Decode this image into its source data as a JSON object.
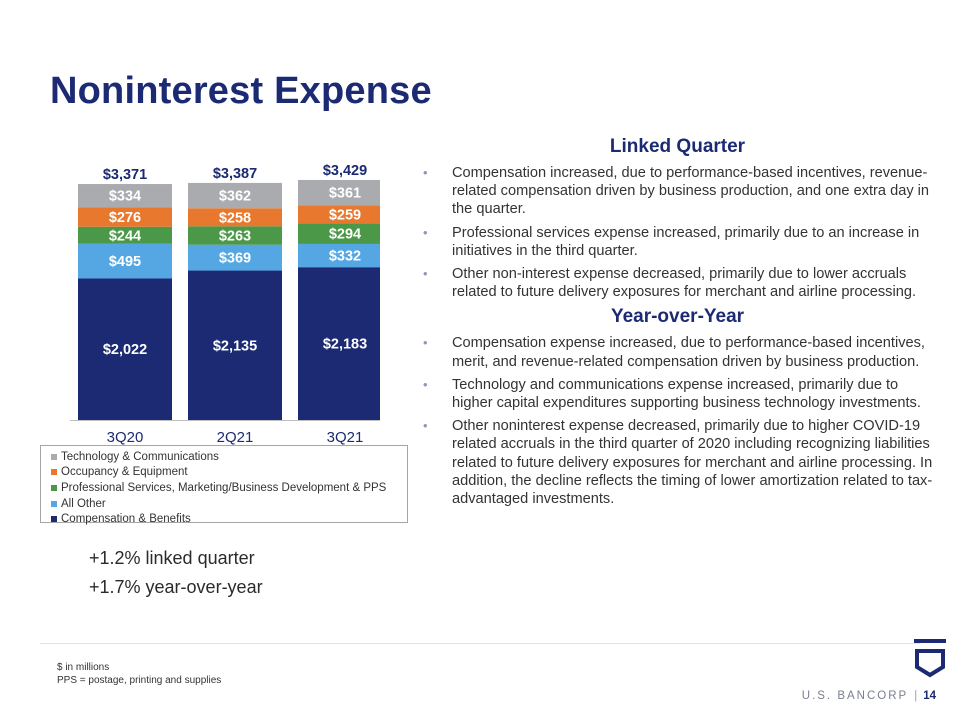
{
  "page": {
    "title": "Noninterest Expense",
    "summary": [
      "+1.2% linked quarter",
      "+1.7% year-over-year"
    ],
    "footnotes": [
      "$ in millions",
      "PPS = postage, printing and supplies"
    ],
    "brand": "U.S. BANCORP",
    "separator": "|",
    "page_number": "14"
  },
  "sections": [
    {
      "title": "Linked Quarter",
      "bullets": [
        "Compensation increased, due to performance-based incentives, revenue-related compensation driven by business production, and one extra day in the quarter.",
        "Professional services expense increased, primarily due to an increase in initiatives in the third quarter.",
        "Other non-interest expense decreased, primarily due to lower accruals related to future delivery exposures for merchant and airline processing."
      ]
    },
    {
      "title": "Year-over-Year",
      "bullets": [
        "Compensation expense increased, due to performance-based incentives, merit, and revenue-related compensation driven by business production.",
        "Technology and communications expense increased, primarily due to higher capital expenditures supporting business technology investments.",
        "Other noninterest expense decreased, primarily due to higher COVID-19 related accruals in the third quarter of 2020 including recognizing liabilities related to future delivery exposures for merchant and airline processing. In addition, the decline reflects the timing of lower amortization related to tax-advantaged investments."
      ]
    }
  ],
  "chart_data": {
    "type": "bar",
    "stacked": true,
    "categories": [
      "3Q20",
      "2Q21",
      "3Q21"
    ],
    "series": [
      {
        "name": "Compensation & Benefits",
        "values": [
          2022,
          2135,
          2183
        ],
        "labels": [
          "$2,022",
          "$2,135",
          "$2,183"
        ],
        "color": "#1b2a73"
      },
      {
        "name": "All Other",
        "values": [
          495,
          369,
          332
        ],
        "labels": [
          "$495",
          "$369",
          "$332"
        ],
        "color": "#55a7e4"
      },
      {
        "name": "Professional Services, Marketing/Business Development & PPS",
        "values": [
          244,
          263,
          294
        ],
        "labels": [
          "$244",
          "$263",
          "$294"
        ],
        "color": "#4b9848"
      },
      {
        "name": "Occupancy & Equipment",
        "values": [
          276,
          258,
          259
        ],
        "labels": [
          "$276",
          "$258",
          "$259"
        ],
        "color": "#e8782e"
      },
      {
        "name": "Technology & Communications",
        "values": [
          334,
          362,
          361
        ],
        "labels": [
          "$334",
          "$362",
          "$361"
        ],
        "color": "#a9abae"
      }
    ],
    "totals": [
      3371,
      3387,
      3429
    ],
    "total_labels": [
      "$3,371",
      "$3,387",
      "$3,429"
    ],
    "legend_order": [
      "Technology & Communications",
      "Occupancy & Equipment",
      "Professional Services, Marketing/Business Development & PPS",
      "All Other",
      "Compensation & Benefits"
    ],
    "legend_position": "bottom",
    "ylim": [
      0,
      3500
    ],
    "grid": false,
    "unit": "$ in millions",
    "total_label_color": "#1b2a73",
    "axis_label_color": "#1b2a73"
  }
}
